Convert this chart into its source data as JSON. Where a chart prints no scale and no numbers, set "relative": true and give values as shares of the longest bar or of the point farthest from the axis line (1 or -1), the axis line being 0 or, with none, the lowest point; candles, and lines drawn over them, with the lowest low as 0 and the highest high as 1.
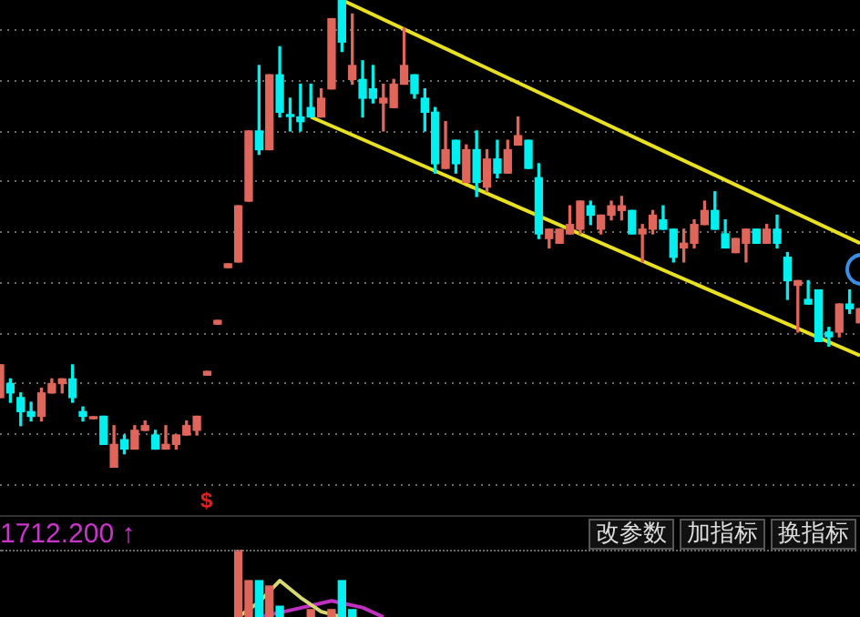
{
  "chart_data": [
    {
      "type": "candlestick",
      "relative": true,
      "grid": "y",
      "tick_labels": false,
      "annotations": [
        "$"
      ],
      "categories": [
        null,
        null,
        null,
        null,
        null,
        null,
        null,
        null,
        null,
        null,
        null,
        null,
        null,
        null,
        null,
        null,
        null,
        null,
        null,
        null,
        null,
        null,
        null,
        null,
        null,
        null,
        null,
        null,
        null,
        null,
        null,
        null,
        null,
        null,
        null,
        null,
        null,
        null,
        null,
        null,
        null,
        null,
        null,
        null,
        null,
        null,
        null,
        null,
        null,
        null,
        null,
        null,
        null,
        null,
        null,
        null,
        null,
        null,
        null,
        null,
        null,
        null,
        null,
        null,
        null,
        null,
        null,
        null,
        null,
        null,
        null,
        null,
        null,
        null,
        null,
        null,
        null,
        null,
        null,
        null,
        null,
        null,
        null,
        null
      ],
      "ohlc": [
        [
          0.15,
          0.22,
          0.15,
          0.22
        ],
        [
          0.18,
          0.19,
          0.14,
          0.16
        ],
        [
          0.15,
          0.16,
          0.09,
          0.12
        ],
        [
          0.12,
          0.14,
          0.1,
          0.11
        ],
        [
          0.11,
          0.17,
          0.1,
          0.16
        ],
        [
          0.16,
          0.19,
          0.16,
          0.18
        ],
        [
          0.18,
          0.19,
          0.16,
          0.19
        ],
        [
          0.19,
          0.22,
          0.14,
          0.15
        ],
        [
          0.12,
          0.13,
          0.1,
          0.11
        ],
        [
          0.105,
          0.109,
          0.105,
          0.109
        ],
        [
          0.11,
          0.11,
          0.05,
          0.05
        ],
        [
          0.0,
          0.09,
          0.0,
          0.05
        ],
        [
          0.06,
          0.07,
          0.03,
          0.04
        ],
        [
          0.04,
          0.09,
          0.04,
          0.08
        ],
        [
          0.08,
          0.1,
          0.08,
          0.09
        ],
        [
          0.07,
          0.08,
          0.04,
          0.04
        ],
        [
          0.04,
          0.09,
          0.04,
          0.05
        ],
        [
          0.05,
          0.07,
          0.04,
          0.07
        ],
        [
          0.07,
          0.1,
          0.07,
          0.09
        ],
        [
          0.08,
          0.11,
          0.07,
          0.11
        ],
        [
          0.198,
          0.206,
          0.198,
          0.206
        ],
        [
          0.307,
          0.315,
          0.307,
          0.315
        ],
        [
          0.428,
          0.436,
          0.428,
          0.436
        ],
        [
          0.44,
          0.56,
          0.44,
          0.56
        ],
        [
          0.57,
          0.72,
          0.57,
          0.72
        ],
        [
          0.72,
          0.86,
          0.67,
          0.68
        ],
        [
          0.68,
          0.84,
          0.68,
          0.84
        ],
        [
          0.84,
          0.9,
          0.75,
          0.76
        ],
        [
          0.755,
          0.79,
          0.72,
          0.751
        ],
        [
          0.75,
          0.82,
          0.72,
          0.74
        ],
        [
          0.77,
          0.82,
          0.75,
          0.75
        ],
        [
          0.75,
          0.81,
          0.75,
          0.79
        ],
        [
          0.81,
          0.96,
          0.81,
          0.96
        ],
        [
          1.0,
          1.0,
          0.89,
          0.91
        ],
        [
          0.83,
          0.97,
          0.82,
          0.86
        ],
        [
          0.83,
          0.87,
          0.75,
          0.79
        ],
        [
          0.81,
          0.86,
          0.78,
          0.79
        ],
        [
          0.78,
          0.82,
          0.72,
          0.79
        ],
        [
          0.77,
          0.83,
          0.77,
          0.82
        ],
        [
          0.82,
          0.94,
          0.82,
          0.86
        ],
        [
          0.84,
          0.84,
          0.79,
          0.8
        ],
        [
          0.79,
          0.81,
          0.72,
          0.76
        ],
        [
          0.76,
          0.77,
          0.63,
          0.65
        ],
        [
          0.64,
          0.74,
          0.64,
          0.68
        ],
        [
          0.7,
          0.7,
          0.63,
          0.65
        ],
        [
          0.61,
          0.69,
          0.61,
          0.68
        ],
        [
          0.68,
          0.72,
          0.58,
          0.61
        ],
        [
          0.6,
          0.68,
          0.59,
          0.66
        ],
        [
          0.66,
          0.7,
          0.62,
          0.63
        ],
        [
          0.63,
          0.7,
          0.63,
          0.68
        ],
        [
          0.69,
          0.75,
          0.69,
          0.71
        ],
        [
          0.7,
          0.7,
          0.64,
          0.64
        ],
        [
          0.62,
          0.65,
          0.49,
          0.5
        ],
        [
          0.49,
          0.51,
          0.47,
          0.51
        ],
        [
          0.48,
          0.51,
          0.48,
          0.51
        ],
        [
          0.5,
          0.56,
          0.5,
          0.52
        ],
        [
          0.51,
          0.57,
          0.5,
          0.57
        ],
        [
          0.56,
          0.57,
          0.52,
          0.54
        ],
        [
          0.51,
          0.54,
          0.5,
          0.54
        ],
        [
          0.54,
          0.57,
          0.53,
          0.56
        ],
        [
          0.55,
          0.58,
          0.53,
          0.56
        ],
        [
          0.55,
          0.55,
          0.5,
          0.5
        ],
        [
          0.5,
          0.52,
          0.44,
          0.51
        ],
        [
          0.51,
          0.55,
          0.5,
          0.54
        ],
        [
          0.53,
          0.56,
          0.51,
          0.51
        ],
        [
          0.51,
          0.51,
          0.44,
          0.45
        ],
        [
          0.47,
          0.51,
          0.44,
          0.48
        ],
        [
          0.48,
          0.53,
          0.47,
          0.52
        ],
        [
          0.52,
          0.57,
          0.52,
          0.55
        ],
        [
          0.55,
          0.59,
          0.51,
          0.51
        ],
        [
          0.5,
          0.53,
          0.47,
          0.47
        ],
        [
          0.46,
          0.49,
          0.46,
          0.49
        ],
        [
          0.48,
          0.51,
          0.44,
          0.51
        ],
        [
          0.51,
          0.51,
          0.48,
          0.48
        ],
        [
          0.48,
          0.52,
          0.48,
          0.51
        ],
        [
          0.51,
          0.54,
          0.47,
          0.48
        ],
        [
          0.45,
          0.46,
          0.36,
          0.4
        ],
        [
          0.39,
          0.4,
          0.29,
          0.4
        ],
        [
          0.36,
          0.4,
          0.35,
          0.35
        ],
        [
          0.38,
          0.38,
          0.27,
          0.27
        ],
        [
          0.29,
          0.3,
          0.26,
          0.28
        ],
        [
          0.29,
          0.35,
          0.28,
          0.35
        ],
        [
          0.35,
          0.38,
          0.33,
          0.34
        ],
        [
          0.31,
          0.34,
          0.31,
          0.34
        ]
      ],
      "colors": [
        "#e0655a",
        "#00f0f0",
        "#00f0f0",
        "#00f0f0",
        "#e0655a",
        "#e0655a",
        "#e0655a",
        "#00f0f0",
        "#00f0f0",
        "#e0655a",
        "#00f0f0",
        "#e0655a",
        "#00f0f0",
        "#e0655a",
        "#e0655a",
        "#00f0f0",
        "#e0655a",
        "#e0655a",
        "#e0655a",
        "#e0655a",
        "#e0655a",
        "#e0655a",
        "#e0655a",
        "#e0655a",
        "#e0655a",
        "#00f0f0",
        "#e0655a",
        "#00f0f0",
        "#00f0f0",
        "#00f0f0",
        "#00f0f0",
        "#e0655a",
        "#e0655a",
        "#00f0f0",
        "#e0655a",
        "#00f0f0",
        "#00f0f0",
        "#e0655a",
        "#e0655a",
        "#e0655a",
        "#00f0f0",
        "#00f0f0",
        "#00f0f0",
        "#e0655a",
        "#00f0f0",
        "#e0655a",
        "#00f0f0",
        "#e0655a",
        "#00f0f0",
        "#e0655a",
        "#e0655a",
        "#00f0f0",
        "#00f0f0",
        "#e0655a",
        "#e0655a",
        "#e0655a",
        "#e0655a",
        "#00f0f0",
        "#e0655a",
        "#e0655a",
        "#e0655a",
        "#00f0f0",
        "#e0655a",
        "#e0655a",
        "#00f0f0",
        "#00f0f0",
        "#e0655a",
        "#e0655a",
        "#e0655a",
        "#00f0f0",
        "#00f0f0",
        "#e0655a",
        "#e0655a",
        "#00f0f0",
        "#e0655a",
        "#00f0f0",
        "#00f0f0",
        "#e0655a",
        "#00f0f0",
        "#00f0f0",
        "#00f0f0",
        "#e0655a",
        "#00f0f0",
        "#e0655a"
      ],
      "series": [
        {
          "type": "line",
          "color": "#e8e020",
          "values": [
            null,
            null,
            null,
            null,
            null,
            null,
            null,
            null,
            null,
            null,
            null,
            null,
            null,
            null,
            null,
            null,
            null,
            null,
            null,
            null,
            null,
            null,
            null,
            null,
            null,
            null,
            null,
            null,
            null,
            null,
            null,
            null,
            null,
            1.0,
            null,
            null,
            null,
            null,
            null,
            null,
            null,
            null,
            null,
            null,
            null,
            null,
            null,
            null,
            null,
            null,
            null,
            null,
            null,
            null,
            null,
            null,
            null,
            null,
            null,
            null,
            null,
            null,
            null,
            null,
            null,
            null,
            null,
            null,
            null,
            null,
            null,
            null,
            null,
            null,
            null,
            null,
            null,
            null,
            null,
            null,
            null,
            null,
            null,
            0.48
          ]
        },
        {
          "type": "line",
          "color": "#e8e020",
          "values": [
            null,
            null,
            null,
            null,
            null,
            null,
            null,
            null,
            null,
            null,
            null,
            null,
            null,
            null,
            null,
            null,
            null,
            null,
            null,
            null,
            null,
            null,
            null,
            null,
            null,
            null,
            null,
            null,
            null,
            null,
            0.75,
            null,
            null,
            null,
            null,
            null,
            null,
            null,
            null,
            null,
            null,
            null,
            null,
            null,
            null,
            null,
            null,
            null,
            null,
            null,
            null,
            null,
            null,
            null,
            null,
            null,
            null,
            null,
            null,
            null,
            null,
            null,
            null,
            null,
            null,
            null,
            null,
            null,
            null,
            null,
            null,
            null,
            null,
            null,
            null,
            null,
            null,
            null,
            null,
            null,
            null,
            null,
            null,
            0.24
          ]
        }
      ]
    },
    {
      "type": "bar",
      "relative": true,
      "tick_labels": false,
      "annotations": [
        "1712.200 ↑",
        "改参数",
        "加指标",
        "换指标"
      ],
      "categories": [
        null,
        null,
        null,
        null,
        null,
        null,
        null,
        null,
        null,
        null,
        null,
        null,
        null,
        null,
        null,
        null,
        null,
        null,
        null,
        null,
        null,
        null,
        null,
        null,
        null,
        null,
        null,
        null,
        null,
        null,
        null,
        null,
        null,
        null,
        null,
        null,
        null,
        null,
        null,
        null,
        null,
        null,
        null,
        null,
        null,
        null,
        null,
        null,
        null,
        null,
        null,
        null,
        null,
        null,
        null,
        null,
        null,
        null,
        null,
        null,
        null,
        null,
        null,
        null,
        null,
        null,
        null,
        null,
        null,
        null,
        null,
        null,
        null,
        null,
        null,
        null,
        null,
        null,
        null,
        null,
        null,
        null,
        null,
        null
      ],
      "values": [
        null,
        null,
        null,
        null,
        null,
        null,
        null,
        null,
        null,
        null,
        null,
        null,
        null,
        null,
        null,
        null,
        null,
        null,
        null,
        null,
        null,
        null,
        null,
        1,
        0.54,
        0.54,
        0.46,
        0.16,
        null,
        null,
        0.11,
        null,
        0.11,
        0.54,
        0.11,
        null,
        null,
        null,
        null,
        null,
        null,
        null,
        null,
        null,
        null,
        null,
        null,
        null,
        null,
        null,
        null,
        null,
        null,
        null,
        null,
        null,
        null,
        null,
        null,
        null,
        null,
        null,
        null,
        null,
        null,
        null,
        null,
        null,
        null,
        null,
        null,
        null,
        null,
        null,
        null,
        null,
        null,
        null,
        null,
        null,
        null,
        null,
        null,
        null
      ],
      "colors": [
        null,
        null,
        null,
        null,
        null,
        null,
        null,
        null,
        null,
        null,
        null,
        null,
        null,
        null,
        null,
        null,
        null,
        null,
        null,
        null,
        null,
        null,
        null,
        "#e0655a",
        "#e0655a",
        "#00f0f0",
        "#e0655a",
        "#00f0f0",
        null,
        null,
        "#e0655a",
        null,
        "#e0655a",
        "#00f0f0",
        "#00f0f0",
        null,
        null,
        null,
        null,
        null,
        null,
        null,
        null,
        null,
        null,
        null,
        null,
        null,
        null,
        null,
        null,
        null,
        null,
        null,
        null,
        null,
        null,
        null,
        null,
        null,
        null,
        null,
        null,
        null,
        null,
        null,
        null,
        null,
        null,
        null,
        null,
        null,
        null,
        null,
        null,
        null,
        null,
        null,
        null,
        null,
        null,
        null,
        null,
        null
      ],
      "series": [
        {
          "type": "line",
          "color": "#d8d870",
          "values": [
            null,
            null,
            null,
            null,
            null,
            null,
            null,
            null,
            null,
            null,
            null,
            null,
            null,
            null,
            null,
            null,
            null,
            null,
            null,
            null,
            null,
            null,
            null,
            0,
            null,
            0.22,
            null,
            0.54,
            null,
            0.29,
            null,
            0.08,
            null,
            0,
            null,
            null,
            null,
            null,
            null,
            null,
            null,
            null,
            null,
            null,
            null,
            null,
            null,
            null,
            null,
            null,
            null,
            null,
            null,
            null,
            null,
            null,
            null,
            null,
            null,
            null,
            null,
            null,
            null,
            null,
            null,
            null,
            null,
            null,
            null,
            null,
            null,
            null,
            null,
            null,
            null,
            null,
            null,
            null,
            null,
            null,
            null,
            null,
            null,
            null
          ]
        },
        {
          "type": "line",
          "color": "#c030c0",
          "values": [
            null,
            null,
            null,
            null,
            null,
            null,
            null,
            null,
            null,
            null,
            null,
            null,
            null,
            null,
            null,
            null,
            null,
            null,
            null,
            null,
            null,
            null,
            null,
            null,
            null,
            0,
            null,
            null,
            0.1,
            null,
            null,
            null,
            0.24,
            null,
            null,
            0.14,
            null,
            0,
            null,
            null,
            null,
            null,
            null,
            null,
            null,
            null,
            null,
            null,
            null,
            null,
            null,
            null,
            null,
            null,
            null,
            null,
            null,
            null,
            null,
            null,
            null,
            null,
            null,
            null,
            null,
            null,
            null,
            null,
            null,
            null,
            null,
            null,
            null,
            null,
            null,
            null,
            null,
            null,
            null,
            null,
            null,
            null,
            null,
            null
          ]
        }
      ]
    }
  ]
}
